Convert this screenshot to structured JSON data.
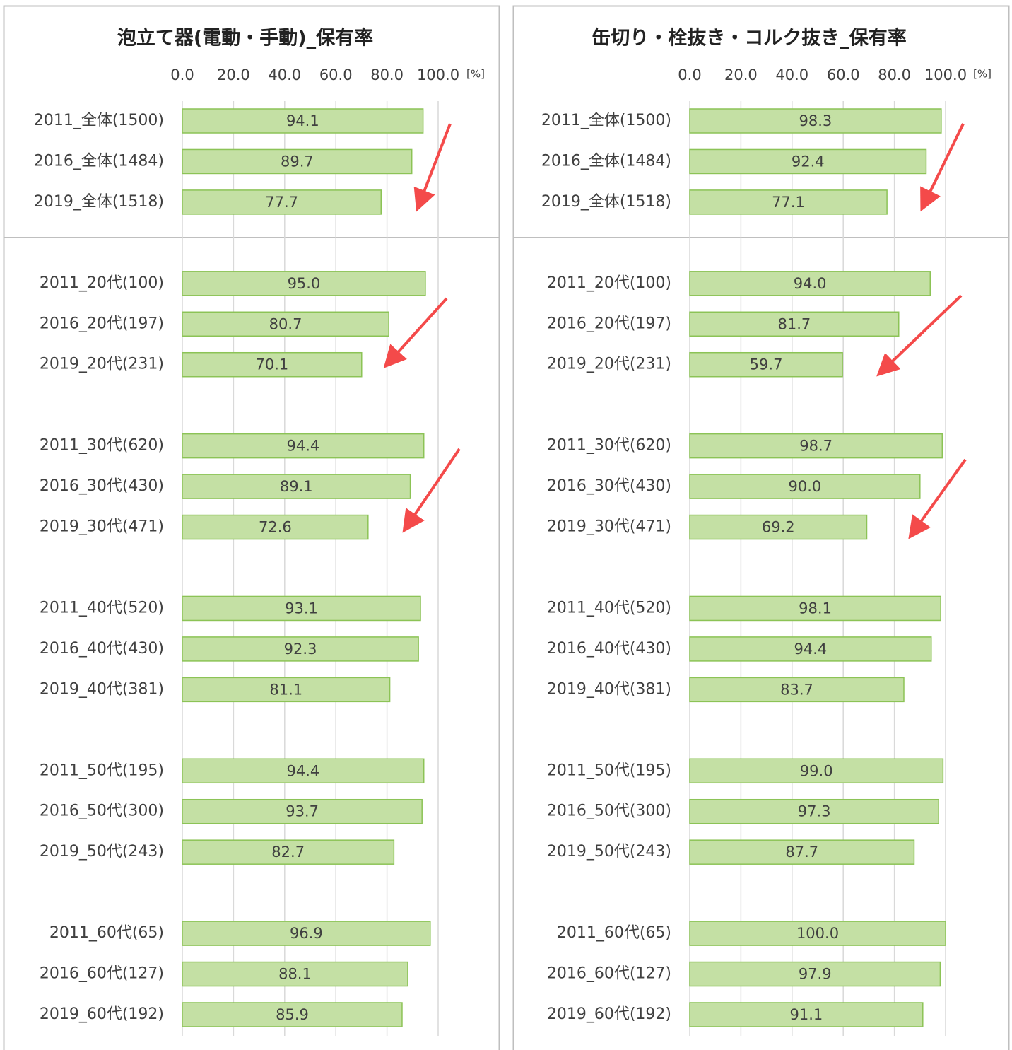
{
  "chart_data": [
    {
      "type": "barh",
      "title": "泡立て器(電動・手動)_保有率",
      "x_unit": "[%]",
      "categories": [
        "2011_全体(1500)",
        "2016_全体(1484)",
        "2019_全体(1518)",
        null,
        "2011_20代(100)",
        "2016_20代(197)",
        "2019_20代(231)",
        null,
        "2011_30代(620)",
        "2016_30代(430)",
        "2019_30代(471)",
        null,
        "2011_40代(520)",
        "2016_40代(430)",
        "2019_40代(381)",
        null,
        "2011_50代(195)",
        "2016_50代(300)",
        "2019_50代(243)",
        null,
        "2011_60代(65)",
        "2016_60代(127)",
        "2019_60代(192)"
      ],
      "values": [
        94.1,
        89.7,
        77.7,
        null,
        95.0,
        80.7,
        70.1,
        null,
        94.4,
        89.1,
        72.6,
        null,
        93.1,
        92.3,
        81.1,
        null,
        94.4,
        93.7,
        82.7,
        null,
        96.9,
        88.1,
        85.9
      ],
      "value_labels": [
        "94.1",
        "89.7",
        "77.7",
        null,
        "95.0",
        "80.7",
        "70.1",
        null,
        "94.4",
        "89.1",
        "72.6",
        null,
        "93.1",
        "92.3",
        "81.1",
        null,
        "94.4",
        "93.7",
        "82.7",
        null,
        "96.9",
        "88.1",
        "85.9"
      ],
      "color": "#c4e0a4",
      "xlim": [
        0,
        100
      ],
      "xticks": [
        {
          "value": 0,
          "label": "0.0"
        },
        {
          "value": 20,
          "label": "20.0"
        },
        {
          "value": 40,
          "label": "40.0"
        },
        {
          "value": 60,
          "label": "60.0"
        },
        {
          "value": 80,
          "label": "80.0"
        },
        {
          "value": 100,
          "label": "100.0"
        }
      ],
      "grid": true
    },
    {
      "type": "barh",
      "title": "缶切り・栓抜き・コルク抜き_保有率",
      "x_unit": "[%]",
      "categories": [
        "2011_全体(1500)",
        "2016_全体(1484)",
        "2019_全体(1518)",
        null,
        "2011_20代(100)",
        "2016_20代(197)",
        "2019_20代(231)",
        null,
        "2011_30代(620)",
        "2016_30代(430)",
        "2019_30代(471)",
        null,
        "2011_40代(520)",
        "2016_40代(430)",
        "2019_40代(381)",
        null,
        "2011_50代(195)",
        "2016_50代(300)",
        "2019_50代(243)",
        null,
        "2011_60代(65)",
        "2016_60代(127)",
        "2019_60代(192)"
      ],
      "values": [
        98.3,
        92.4,
        77.1,
        null,
        94.0,
        81.7,
        59.7,
        null,
        98.7,
        90.0,
        69.2,
        null,
        98.1,
        94.4,
        83.7,
        null,
        99.0,
        97.3,
        87.7,
        null,
        100.0,
        97.9,
        91.1
      ],
      "value_labels": [
        "98.3",
        "92.4",
        "77.1",
        null,
        "94.0",
        "81.7",
        "59.7",
        null,
        "98.7",
        "90.0",
        "69.2",
        null,
        "98.1",
        "94.4",
        "83.7",
        null,
        "99.0",
        "97.3",
        "87.7",
        null,
        "100.0",
        "97.9",
        "91.1"
      ],
      "color": "#c4e0a4",
      "xlim": [
        0,
        100
      ],
      "xticks": [
        {
          "value": 0,
          "label": "0.0"
        },
        {
          "value": 20,
          "label": "20.0"
        },
        {
          "value": 40,
          "label": "40.0"
        },
        {
          "value": 60,
          "label": "60.0"
        },
        {
          "value": 80,
          "label": "80.0"
        },
        {
          "value": 100,
          "label": "100.0"
        }
      ],
      "grid": true
    }
  ]
}
